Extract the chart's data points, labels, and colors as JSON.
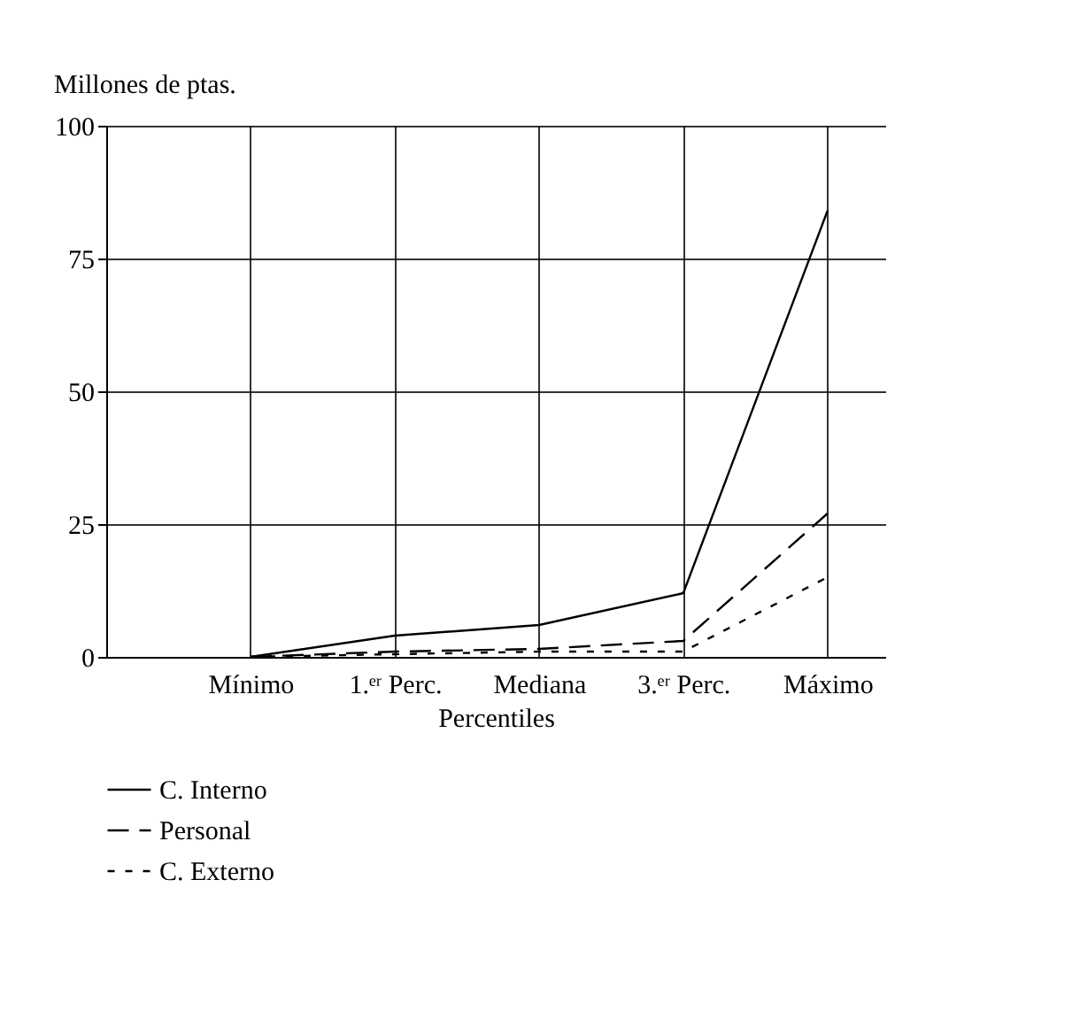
{
  "chart_data": {
    "type": "line",
    "xlabel": "Percentiles",
    "ylabel": "Millones de ptas.",
    "categories": [
      "Mínimo",
      "1.ᵉʳ Perc.",
      "Mediana",
      "3.ᵉʳ Perc.",
      "Máximo"
    ],
    "series": [
      {
        "name": "C. Interno",
        "color": "#000000",
        "line_style": "solid",
        "values": [
          0,
          4,
          6,
          12,
          84
        ]
      },
      {
        "name": "Personal",
        "color": "#000000",
        "line_style": "dashed",
        "values": [
          0,
          1,
          1.5,
          3,
          27
        ]
      },
      {
        "name": "C. Externo",
        "color": "#000000",
        "line_style": "dotted",
        "values": [
          0,
          0.5,
          1,
          1,
          15
        ]
      }
    ],
    "ylim": [
      0,
      100
    ],
    "yticks": [
      0,
      25,
      50,
      75,
      100
    ],
    "grid": true,
    "legend": "bottom left",
    "marker": "none"
  }
}
